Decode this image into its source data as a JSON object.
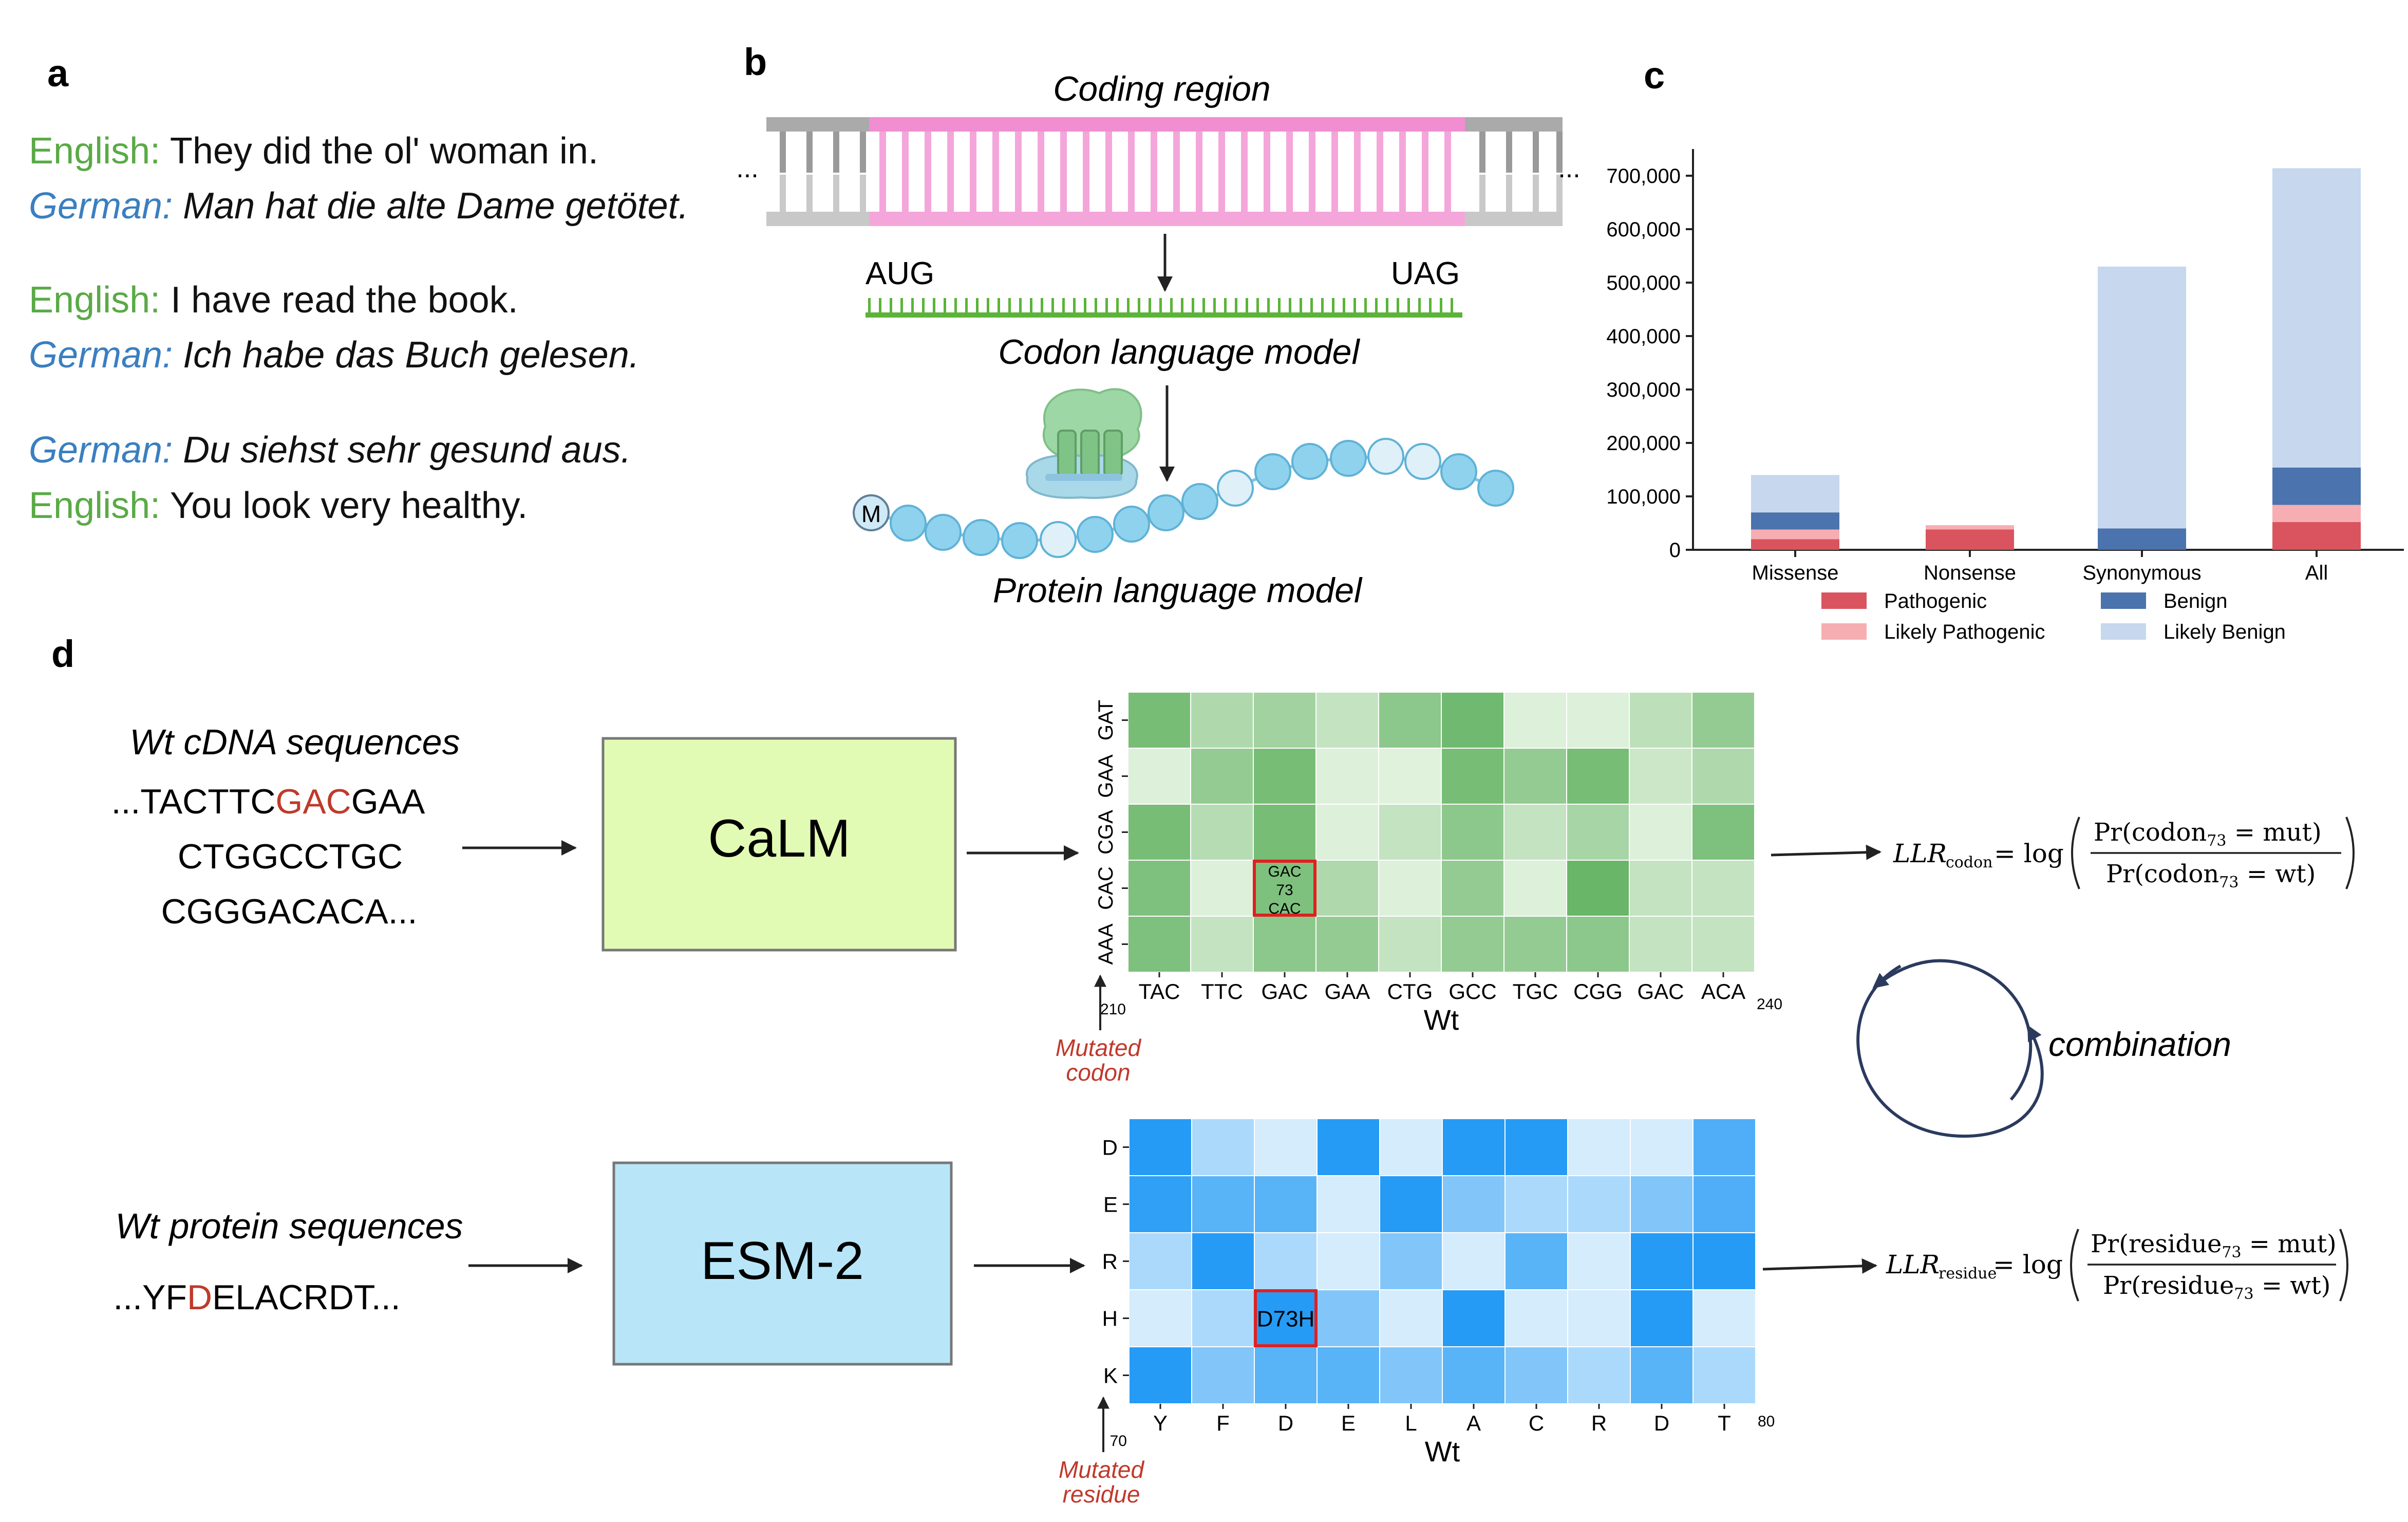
{
  "panel_labels": {
    "a": "a",
    "b": "b",
    "c": "c",
    "d": "d"
  },
  "colors": {
    "english": "#5aaa46",
    "german": "#3a7fc0",
    "red": "#c0392b",
    "calm_box": "#e2fbb4",
    "esm_box": "#b8e6f8",
    "pathogenic": "#d9545e",
    "likely_pathogenic": "#f6aeb2",
    "benign": "#4b73ad",
    "likely_benign": "#c6d7ee"
  },
  "panel_a": {
    "pairs": [
      [
        {
          "lang": "English:",
          "text": "They did the ol' woman in.",
          "color": "english",
          "italic": false
        },
        {
          "lang": "German:",
          "text": "Man hat die alte Dame getötet.",
          "color": "german",
          "italic": true
        }
      ],
      [
        {
          "lang": "English:",
          "text": "I have read the book.",
          "color": "english",
          "italic": false
        },
        {
          "lang": "German:",
          "text": "Ich habe das Buch gelesen.",
          "color": "german",
          "italic": true
        }
      ],
      [
        {
          "lang": "German:",
          "text": "Du siehst sehr gesund aus.",
          "color": "german",
          "italic": true
        },
        {
          "lang": "English:",
          "text": "You look very healthy.",
          "color": "english",
          "italic": false
        }
      ]
    ]
  },
  "panel_b": {
    "coding_region": "Coding region",
    "ellipsis_left": "...",
    "ellipsis_right": "...",
    "start_codon": "AUG",
    "stop_codon": "UAG",
    "codon_model": "Codon language model",
    "protein_model": "Protein language model",
    "methionine": "M"
  },
  "chart_data": {
    "type": "bar",
    "stacked": true,
    "categories": [
      "Missense",
      "Nonsense",
      "Synonymous",
      "All"
    ],
    "series": [
      {
        "name": "Pathogenic",
        "color": "pathogenic",
        "values": [
          20000,
          38000,
          0,
          52000
        ]
      },
      {
        "name": "Likely Pathogenic",
        "color": "likely_pathogenic",
        "values": [
          18000,
          8000,
          0,
          32000
        ]
      },
      {
        "name": "Benign",
        "color": "benign",
        "values": [
          32000,
          0,
          40000,
          70000
        ]
      },
      {
        "name": "Likely Benign",
        "color": "likely_benign",
        "values": [
          70000,
          0,
          490000,
          560000
        ]
      }
    ],
    "ylim": [
      0,
      750000
    ],
    "yticks": [
      0,
      100000,
      200000,
      300000,
      400000,
      500000,
      600000,
      700000
    ],
    "ytick_labels": [
      "0",
      "100,000",
      "200,000",
      "300,000",
      "400,000",
      "500,000",
      "600,000",
      "700,000"
    ],
    "grid": false,
    "legend_position": "bottom",
    "legend_order": [
      "Pathogenic",
      "Benign",
      "Likely Pathogenic",
      "Likely Benign"
    ]
  },
  "panel_d": {
    "wt_cdna_title": "Wt cDNA sequences",
    "cdna_line1_pre": "...TACTTC",
    "cdna_line1_mut": "GAC",
    "cdna_line1_post": "GAA",
    "cdna_line2": "CTGGCCTGC",
    "cdna_line3": "CGGGACACA...",
    "calm_label": "CaLM",
    "wt_protein_title": "Wt protein sequences",
    "prot_pre": "...YF",
    "prot_mut": "D",
    "prot_post": "ELACRDT...",
    "esm_label": "ESM-2",
    "codon_heatmap": {
      "row_labels": [
        "GAT",
        "GAA",
        "CGA",
        "CAC",
        "AAA"
      ],
      "col_labels": [
        "TAC",
        "TTC",
        "GAC",
        "GAA",
        "CTG",
        "GCC",
        "TGC",
        "CGG",
        "GAC",
        "ACA"
      ],
      "levels": [
        [
          0.85,
          0.45,
          0.55,
          0.3,
          0.7,
          0.9,
          0.12,
          0.12,
          0.35,
          0.65
        ],
        [
          0.12,
          0.65,
          0.85,
          0.12,
          0.1,
          0.85,
          0.65,
          0.85,
          0.25,
          0.45
        ],
        [
          0.85,
          0.4,
          0.85,
          0.12,
          0.3,
          0.7,
          0.3,
          0.5,
          0.12,
          0.8
        ],
        [
          0.8,
          0.12,
          0.8,
          0.45,
          0.12,
          0.65,
          0.12,
          0.95,
          0.3,
          0.3
        ],
        [
          0.8,
          0.3,
          0.7,
          0.65,
          0.3,
          0.65,
          0.65,
          0.7,
          0.3,
          0.3
        ]
      ],
      "highlight_text": [
        "GAC",
        "73",
        "CAC"
      ],
      "x_start": "210",
      "x_end": "240",
      "axis_label": "Wt",
      "mutated_label": [
        "Mutated",
        "codon"
      ]
    },
    "residue_heatmap": {
      "row_labels": [
        "D",
        "E",
        "R",
        "H",
        "K"
      ],
      "col_labels": [
        "Y",
        "F",
        "D",
        "E",
        "L",
        "A",
        "C",
        "R",
        "D",
        "T"
      ],
      "levels": [
        [
          0.95,
          0.3,
          0.1,
          0.95,
          0.1,
          0.95,
          0.95,
          0.1,
          0.1,
          0.75
        ],
        [
          0.9,
          0.7,
          0.7,
          0.1,
          0.95,
          0.5,
          0.3,
          0.3,
          0.5,
          0.75
        ],
        [
          0.3,
          0.95,
          0.3,
          0.1,
          0.5,
          0.1,
          0.7,
          0.1,
          0.95,
          0.95
        ],
        [
          0.1,
          0.3,
          0.95,
          0.5,
          0.1,
          0.95,
          0.1,
          0.1,
          0.95,
          0.1
        ],
        [
          0.95,
          0.5,
          0.7,
          0.7,
          0.5,
          0.7,
          0.5,
          0.3,
          0.7,
          0.3
        ]
      ],
      "highlight_text": "D73H",
      "x_start": "70",
      "x_end": "80",
      "axis_label": "Wt",
      "mutated_label": [
        "Mutated",
        "residue"
      ]
    },
    "llr_codon": {
      "lhs": "LLR",
      "sub": "codon",
      "eq": "= log",
      "num": "Pr(codon",
      "num_sub": "73",
      "num_tail": " = mut)",
      "den": "Pr(codon",
      "den_sub": "73",
      "den_tail": " = wt)"
    },
    "llr_residue": {
      "lhs": "LLR",
      "sub": "residue",
      "eq": "= log",
      "num": "Pr(residue",
      "num_sub": "73",
      "num_tail": " = mut)",
      "den": "Pr(residue",
      "den_sub": "73",
      "den_tail": " = wt)"
    },
    "combination": "combination"
  }
}
